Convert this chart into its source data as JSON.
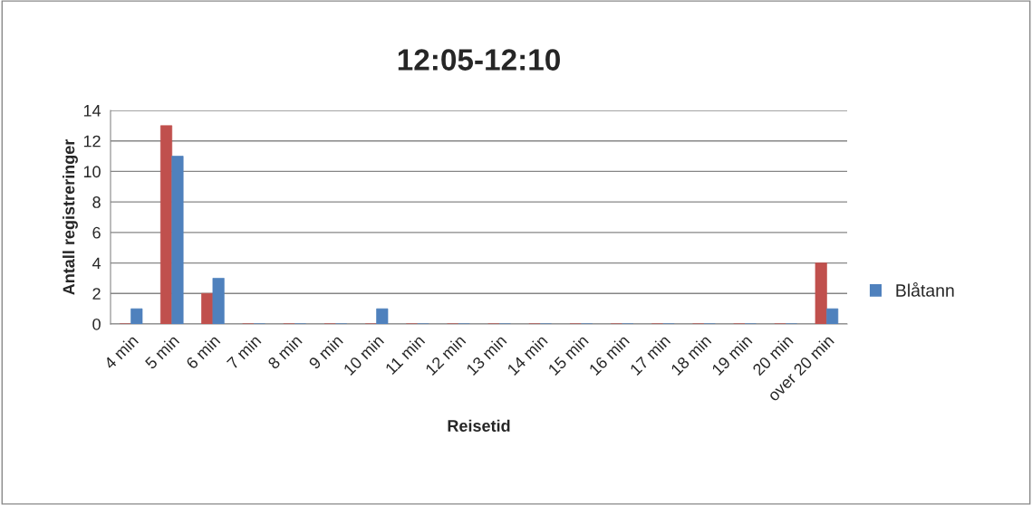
{
  "chart_data": {
    "type": "bar",
    "title": "12:05-12:10",
    "xlabel": "Reisetid",
    "ylabel": "Antall registreringer",
    "categories": [
      "4 min",
      "5 min",
      "6 min",
      "7 min",
      "8 min",
      "9 min",
      "10 min",
      "11 min",
      "12 min",
      "13 min",
      "14 min",
      "15 min",
      "16 min",
      "17 min",
      "18 min",
      "19 min",
      "20 min",
      "over 20 min"
    ],
    "series": [
      {
        "color": "#c0504d",
        "values": [
          0,
          13,
          2,
          0,
          0,
          0,
          0,
          0,
          0,
          0,
          0,
          0,
          0,
          0,
          0,
          0,
          0,
          4
        ]
      },
      {
        "name": "Blåtann",
        "color": "#4f81bd",
        "values": [
          1,
          11,
          3,
          0,
          0,
          0,
          1,
          0,
          0,
          0,
          0,
          0,
          0,
          0,
          0,
          0,
          0,
          1
        ]
      }
    ],
    "ylim": [
      0,
      14
    ],
    "yticks": [
      0,
      2,
      4,
      6,
      8,
      10,
      12,
      14
    ],
    "grid": "y",
    "legend": "right"
  }
}
